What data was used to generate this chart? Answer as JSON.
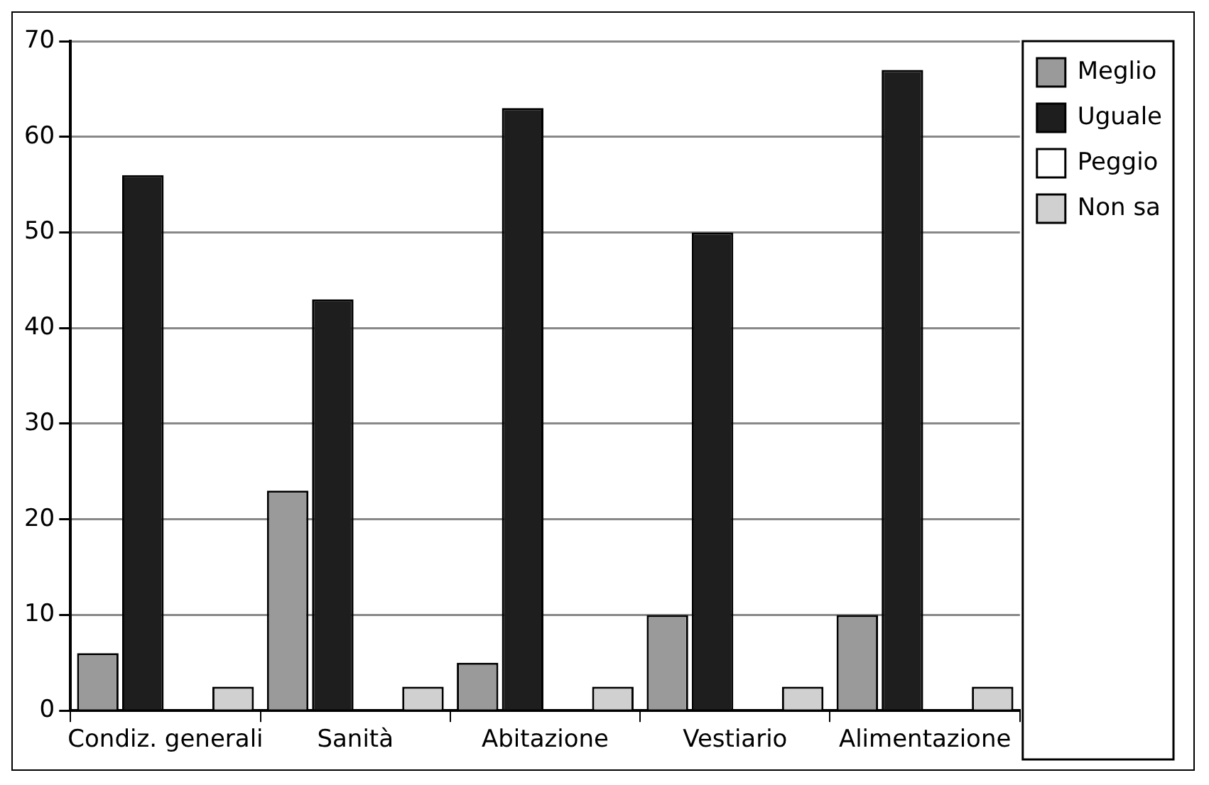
{
  "chart_data": {
    "type": "bar",
    "categories": [
      "Condiz. generali",
      "Sanità",
      "Abitazione",
      "Vestiario",
      "Alimentazione"
    ],
    "series": [
      {
        "name": "Meglio",
        "color": "#9a9a9a",
        "values": [
          6,
          23,
          5,
          10,
          10
        ]
      },
      {
        "name": "Uguale",
        "color": "#1e1e1e",
        "values": [
          56,
          43,
          63,
          50,
          67
        ]
      },
      {
        "name": "Peggio",
        "color": "#ffffff",
        "values": [
          0,
          0,
          0,
          0,
          0
        ]
      },
      {
        "name": "Non sa",
        "color": "#d0d0d0",
        "values": [
          2.5,
          2.5,
          2.5,
          2.5,
          2.5
        ]
      }
    ],
    "ylim": [
      0,
      70
    ],
    "yticks": [
      0,
      10,
      20,
      30,
      40,
      50,
      60,
      70
    ],
    "grid": "y",
    "legend": "top right"
  }
}
